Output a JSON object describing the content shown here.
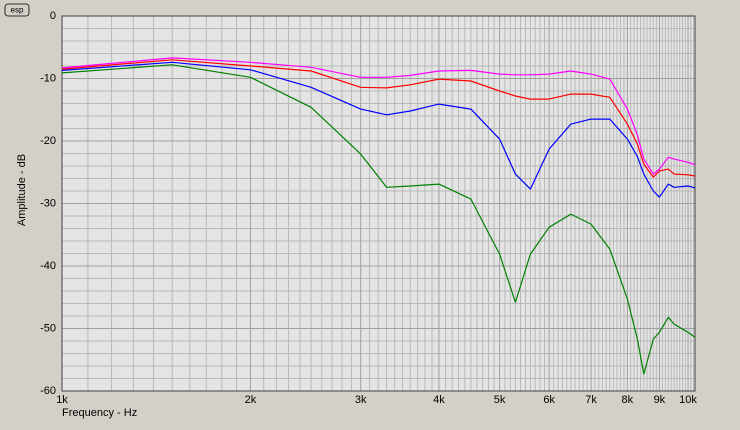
{
  "chart_data": {
    "type": "line",
    "logo": "esp",
    "xlabel": "Frequency - Hz",
    "ylabel": "Amplitude - dB",
    "xscale": "log",
    "grid": true,
    "xlim": [
      1000,
      10260
    ],
    "ylim": [
      -60,
      0
    ],
    "xticks": [
      {
        "value": 1000,
        "label": "1k"
      },
      {
        "value": 2000,
        "label": "2k"
      },
      {
        "value": 3000,
        "label": "3k"
      },
      {
        "value": 4000,
        "label": "4k"
      },
      {
        "value": 5000,
        "label": "5k"
      },
      {
        "value": 6000,
        "label": "6k"
      },
      {
        "value": 7000,
        "label": "7k"
      },
      {
        "value": 8000,
        "label": "8k"
      },
      {
        "value": 9000,
        "label": "9k"
      },
      {
        "value": 10000,
        "label": "10k"
      }
    ],
    "yticks": [
      0,
      -10,
      -20,
      -30,
      -40,
      -50,
      -60
    ],
    "x_minor_ticks": [
      1100,
      1200,
      1300,
      1400,
      1500,
      1600,
      1700,
      1800,
      1900,
      2100,
      2200,
      2300,
      2400,
      2500,
      2600,
      2700,
      2800,
      2900,
      3100,
      3200,
      3300,
      3400,
      3500,
      3600,
      3700,
      3800,
      3900,
      4100,
      4200,
      4300,
      4400,
      4500,
      4600,
      4700,
      4800,
      4900,
      5100,
      5200,
      5300,
      5400,
      5500,
      5600,
      5700,
      5800,
      5900,
      6100,
      6200,
      6300,
      6400,
      6500,
      6600,
      6700,
      6800,
      6900,
      7100,
      7200,
      7300,
      7400,
      7500,
      7600,
      7700,
      7800,
      7900,
      8100,
      8200,
      8300,
      8400,
      8500,
      8600,
      8700,
      8800,
      8900,
      9100,
      9200,
      9300,
      9400,
      9500,
      9600,
      9700,
      9800,
      9900,
      10100,
      10200
    ],
    "y_minor_ticks": [
      -2,
      -4,
      -6,
      -8,
      -12,
      -14,
      -16,
      -18,
      -22,
      -24,
      -26,
      -28,
      -32,
      -34,
      -36,
      -38,
      -42,
      -44,
      -46,
      -48,
      -52,
      -54,
      -56,
      -58
    ],
    "x": [
      1000,
      1500,
      2000,
      2500,
      3000,
      3300,
      3600,
      4000,
      4500,
      5000,
      5300,
      5600,
      6000,
      6500,
      7000,
      7500,
      8000,
      8300,
      8500,
      8800,
      9000,
      9300,
      9500,
      10000,
      10260
    ],
    "series": [
      {
        "color": "#ff00ff",
        "values": [
          -8.3,
          -6.7,
          -7.4,
          -8.2,
          -9.8,
          -9.8,
          -9.5,
          -8.8,
          -8.7,
          -9.3,
          -9.4,
          -9.4,
          -9.3,
          -8.8,
          -9.3,
          -10.1,
          -14.9,
          -19,
          -22.9,
          -25.3,
          -24.5,
          -22.6,
          -22.9,
          -23.4,
          -23.8
        ]
      },
      {
        "color": "#ff0000",
        "values": [
          -8.5,
          -7,
          -8,
          -8.8,
          -11.4,
          -11.5,
          -11,
          -10.1,
          -10.4,
          -12,
          -12.8,
          -13.3,
          -13.3,
          -12.5,
          -12.5,
          -13,
          -17.3,
          -20.5,
          -23.7,
          -25.8,
          -24.8,
          -24.5,
          -25.3,
          -25.4,
          -25.6
        ]
      },
      {
        "color": "#0000ff",
        "values": [
          -8.7,
          -7.4,
          -8.6,
          -11.4,
          -14.9,
          -15.8,
          -15.2,
          -14.1,
          -14.9,
          -19.7,
          -25.3,
          -27.7,
          -21.3,
          -17.3,
          -16.5,
          -16.5,
          -19.7,
          -22.5,
          -25.3,
          -28,
          -29,
          -26.9,
          -27.4,
          -27.2,
          -27.5
        ]
      },
      {
        "color": "#008000",
        "values": [
          -9.1,
          -7.8,
          -9.8,
          -14.6,
          -22.1,
          -27.4,
          -27.2,
          -26.9,
          -29.3,
          -38.1,
          -45.8,
          -38.1,
          -33.8,
          -31.7,
          -33.3,
          -37.3,
          -45.3,
          -51.7,
          -57.3,
          -51.7,
          -50.6,
          -48.2,
          -49.3,
          -50.6,
          -51.4
        ]
      }
    ]
  }
}
